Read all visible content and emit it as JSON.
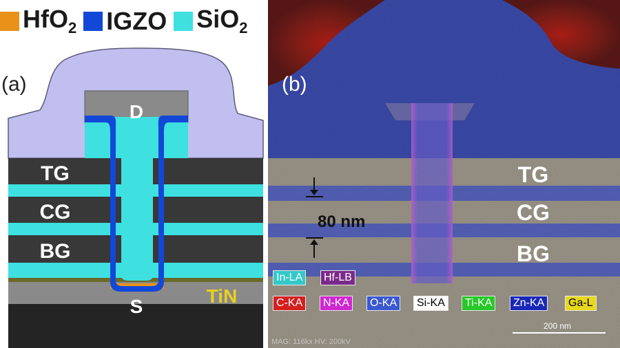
{
  "legend": [
    {
      "label": "HfO",
      "sub": "2",
      "color": "#e8921a"
    },
    {
      "label": "IGZO",
      "sub": "",
      "color": "#1248d8"
    },
    {
      "label": "SiO",
      "sub": "2",
      "color": "#3ee0e0"
    }
  ],
  "panel_a": {
    "label": "(a)",
    "layers": {
      "top": "TG",
      "control": "CG",
      "bottom": "BG"
    },
    "drain": "D",
    "source": "S",
    "tin": "TiN"
  },
  "panel_b": {
    "label": "(b)",
    "layers": {
      "top": "TG",
      "control": "CG",
      "bottom": "BG"
    },
    "dimension": "80 nm",
    "eds_tags_row1": [
      {
        "text": "In-LA",
        "bg": "#34c8c8",
        "fg": "#ffffff"
      },
      {
        "text": "Hf-LB",
        "bg": "#7a2a8a",
        "fg": "#ffffff"
      }
    ],
    "eds_tags_row2": [
      {
        "text": "C-KA",
        "bg": "#d42020",
        "fg": "#ffffff"
      },
      {
        "text": "N-KA",
        "bg": "#d028d0",
        "fg": "#ffffff"
      },
      {
        "text": "O-KA",
        "bg": "#3a58d0",
        "fg": "#ffffff"
      },
      {
        "text": "Si-KA",
        "bg": "#ffffff",
        "fg": "#000000"
      },
      {
        "text": "Ti-KA",
        "bg": "#28c828",
        "fg": "#ffffff"
      },
      {
        "text": "Zn-KA",
        "bg": "#1a28b8",
        "fg": "#ffffff"
      },
      {
        "text": "Ga-L",
        "bg": "#e8d820",
        "fg": "#000000"
      }
    ],
    "scale_bar": "200 nm",
    "footer": "MAG: 116kx  HV: 200kV"
  }
}
